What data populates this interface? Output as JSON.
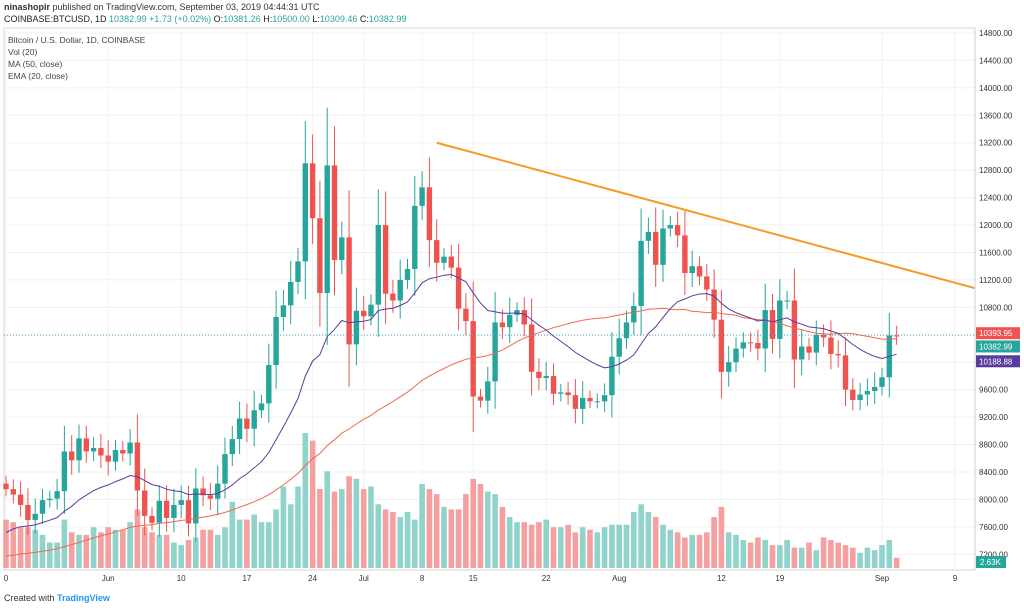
{
  "header": {
    "publisher": "ninashopir",
    "published_text": "published on TradingView.com, September 03, 2019 04:44:31 UTC",
    "symbol": "COINBASE:BTCUSD, 1D",
    "last": "10382.99",
    "change": "+1.73 (+0.02%)",
    "o_label": "O:",
    "o": "10381.26",
    "h_label": "H:",
    "h": "10500.00",
    "l_label": "L:",
    "l": "10309.46",
    "c_label": "C:",
    "c": "10382.99"
  },
  "legend": {
    "title": "Bitcoin / U.S. Dollar, 1D, COINBASE",
    "vol": "Vol (20)",
    "ma": "MA (50, close)",
    "ema": "EMA (20, close)"
  },
  "footer": {
    "created_with": "Created with",
    "brand": "TradingView"
  },
  "colors": {
    "up": "#26a69a",
    "down": "#ef5350",
    "vol_up": "#8fd3cb",
    "vol_down": "#f5a0a0",
    "ema": "#5b3a9e",
    "ma": "#f0684f",
    "trendline": "#f59a23"
  },
  "chart_data": {
    "type": "candlestick",
    "title": "Bitcoin / U.S. Dollar, 1D, COINBASE",
    "ylim": [
      7000,
      14800
    ],
    "y_ticks": [
      7200,
      7600,
      8000,
      8400,
      8800,
      9200,
      9600,
      10000,
      10400,
      10800,
      11200,
      11600,
      12000,
      12400,
      12800,
      13200,
      13600,
      14000,
      14400,
      14800
    ],
    "x_ticks": [
      {
        "label": "0",
        "index": 0
      },
      {
        "label": "Jun",
        "index": 14
      },
      {
        "label": "10",
        "index": 24
      },
      {
        "label": "17",
        "index": 33
      },
      {
        "label": "24",
        "index": 42
      },
      {
        "label": "Jul",
        "index": 49
      },
      {
        "label": "8",
        "index": 57
      },
      {
        "label": "15",
        "index": 64
      },
      {
        "label": "22",
        "index": 74
      },
      {
        "label": "Aug",
        "index": 84
      },
      {
        "label": "12",
        "index": 98
      },
      {
        "label": "19",
        "index": 106
      },
      {
        "label": "Sep",
        "index": 120
      },
      {
        "label": "9",
        "index": 130
      }
    ],
    "price_labels": [
      {
        "value": 10393.95,
        "text": "10393.95",
        "color": "#ef5350"
      },
      {
        "value": 10382.99,
        "text": "10382.99",
        "color": "#26a69a"
      },
      {
        "value": 10188.88,
        "text": "10188.88",
        "color": "#5b3a9e"
      }
    ],
    "volume_label": "2.63K",
    "trendline": {
      "from": [
        59,
        13200
      ],
      "to": [
        136,
        11080
      ]
    },
    "close": [
      8150,
      8070,
      7920,
      7700,
      7790,
      7990,
      8010,
      8120,
      8700,
      8570,
      8890,
      8700,
      8750,
      8640,
      8550,
      8720,
      8670,
      8830,
      8130,
      7760,
      7660,
      7980,
      7730,
      7920,
      7990,
      7650,
      8160,
      8060,
      8010,
      8230,
      8660,
      8880,
      9180,
      9030,
      9300,
      9400,
      9960,
      10660,
      10830,
      11170,
      11470,
      12900,
      12100,
      11010,
      12870,
      11490,
      11820,
      10260,
      10750,
      10670,
      10840,
      12000,
      11000,
      10900,
      11200,
      11360,
      12280,
      12550,
      11780,
      11450,
      11540,
      11380,
      10780,
      10600,
      9500,
      9440,
      9720,
      10580,
      10510,
      10690,
      10760,
      10550,
      9860,
      9770,
      9800,
      9540,
      9560,
      9520,
      9320,
      9480,
      9430,
      9430,
      9520,
      10080,
      10350,
      10580,
      10820,
      11770,
      11900,
      11420,
      11950,
      12000,
      11850,
      11300,
      11400,
      11250,
      11060,
      10620,
      9860,
      10000,
      10200,
      10290,
      10280,
      10200,
      10760,
      10340,
      10900,
      10900,
      10040,
      10230,
      10140,
      10400,
      10360,
      10120,
      10100,
      9600,
      9450,
      9530,
      9580,
      9640,
      9780,
      10390,
      10383
    ],
    "volume": [
      1.9,
      1.8,
      1.6,
      1.6,
      1.5,
      1.3,
      1.0,
      1.0,
      1.9,
      1.4,
      1.3,
      1.3,
      1.6,
      1.4,
      1.6,
      1.5,
      1.5,
      1.8,
      2.3,
      1.6,
      1.4,
      1.3,
      1.3,
      1.0,
      0.9,
      1.1,
      1.2,
      1.5,
      1.5,
      1.3,
      1.6,
      2.6,
      1.9,
      1.9,
      2.1,
      1.8,
      1.8,
      2.3,
      3.2,
      2.5,
      3.2,
      5.3,
      5.0,
      3.1,
      3.8,
      3.0,
      3.1,
      3.6,
      3.5,
      3.1,
      3.2,
      2.5,
      2.3,
      2.2,
      2.0,
      2.2,
      1.9,
      3.3,
      3.1,
      2.9,
      2.4,
      2.3,
      2.3,
      2.9,
      3.5,
      3.3,
      3.0,
      2.9,
      2.4,
      2.0,
      1.8,
      1.8,
      1.7,
      1.8,
      1.9,
      1.6,
      1.6,
      1.7,
      1.4,
      1.6,
      1.5,
      1.4,
      1.6,
      1.7,
      1.7,
      1.7,
      2.2,
      2.5,
      2.2,
      2.0,
      1.7,
      1.5,
      1.4,
      1.2,
      1.3,
      1.3,
      1.4,
      2.0,
      2.4,
      1.4,
      1.3,
      1.1,
      1.0,
      1.2,
      1.1,
      0.9,
      0.9,
      1.1,
      0.8,
      0.8,
      1.0,
      0.7,
      1.2,
      1.1,
      1.0,
      0.9,
      0.8,
      0.6,
      0.8,
      0.7,
      0.9,
      1.1,
      0.4
    ]
  }
}
